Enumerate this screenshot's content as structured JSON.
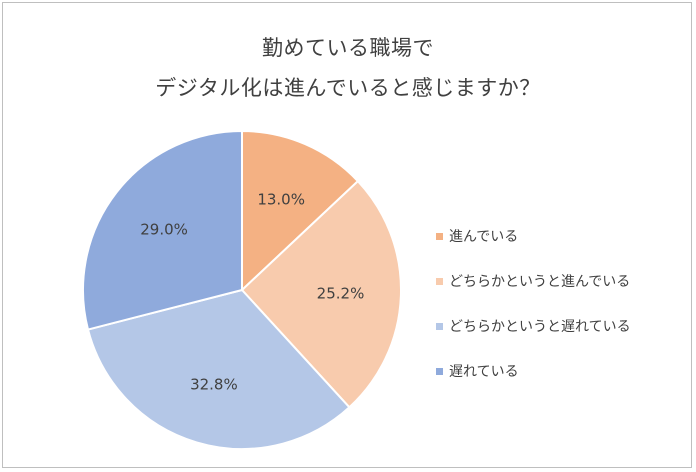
{
  "chart_data": {
    "type": "pie",
    "title_lines": [
      "勤めている職場で",
      "デジタル化は進んでいると感じますか？"
    ],
    "categories": [
      "進んでいる",
      "どちらかというと進んでいる",
      "どちらかというと遅れている",
      "遅れている"
    ],
    "values": [
      13.0,
      25.2,
      32.8,
      29.0
    ],
    "value_labels": [
      "13.0%",
      "25.2%",
      "32.8%",
      "29.0%"
    ],
    "colors": [
      "#f4b183",
      "#f8cbad",
      "#b4c7e7",
      "#8faadc"
    ],
    "legend_position": "right",
    "start": "12 o'clock, clockwise"
  }
}
